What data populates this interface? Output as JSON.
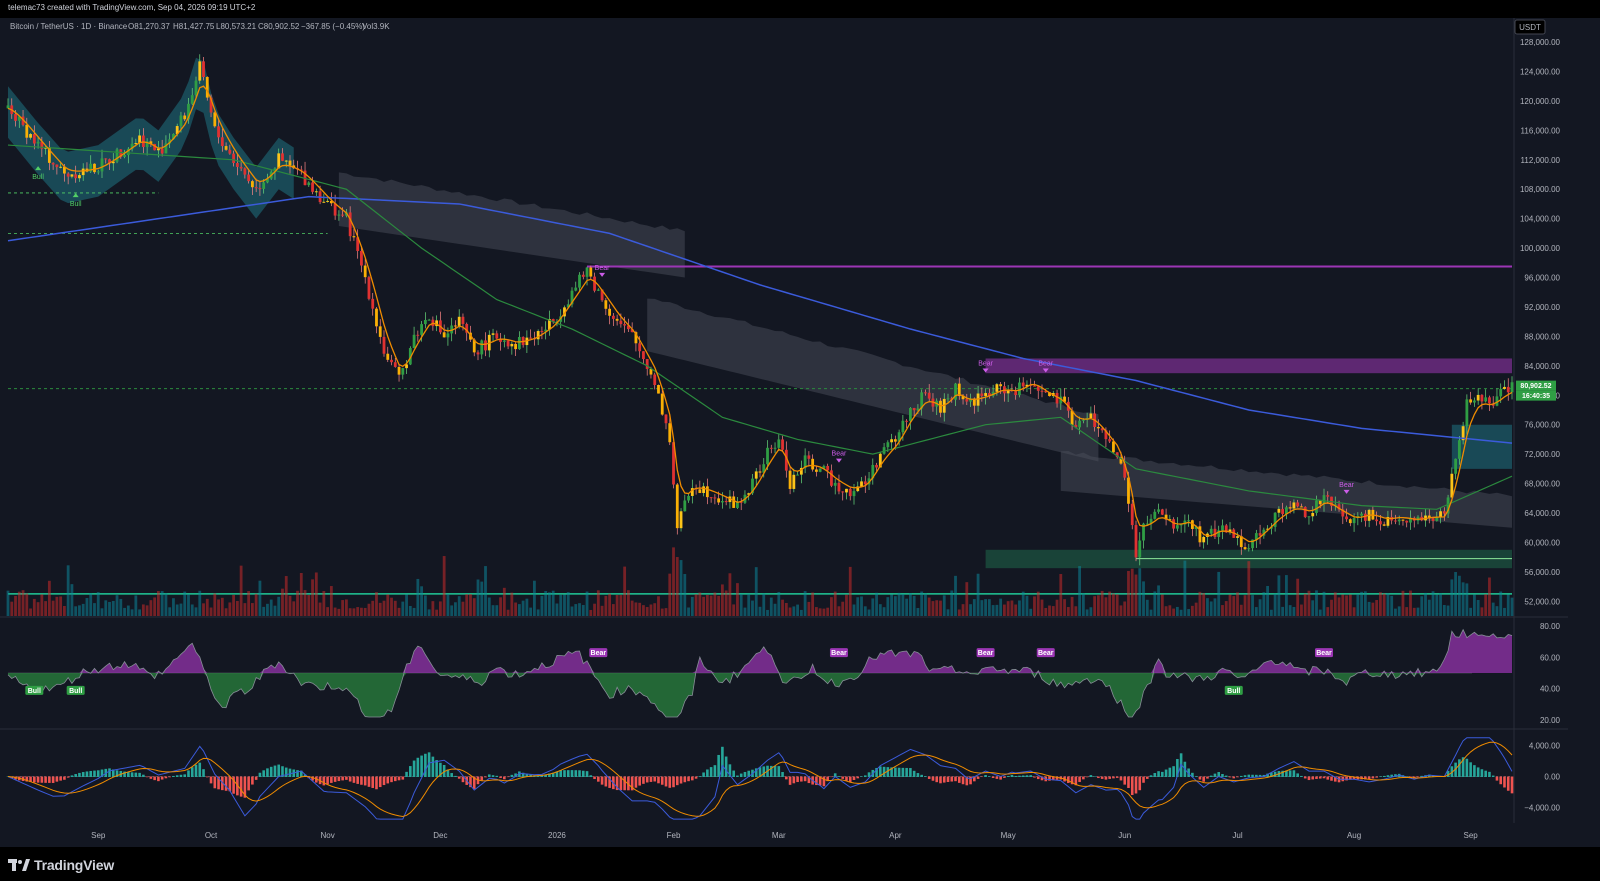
{
  "topbar": {
    "text": "telemac73 created with TradingView.com, Sep 04, 2026 09:19 UTC+2"
  },
  "brand": {
    "name": "TradingView"
  },
  "colors": {
    "bg": "#131722",
    "up": "#2f9e44",
    "down": "#e03131",
    "wick": "#ffffff",
    "ma200": "#3b5bdb",
    "ma50": "#2b8a3e",
    "ema": "#f08c00",
    "purple": "#9c36b5",
    "cloud": "#4a4e5a",
    "teal": "#1e6b7a",
    "zone": "#1f6f4d"
  },
  "chart_data": {
    "type": "candlestick",
    "symbol": "Bitcoin / TetherUS · 1D · Binance",
    "ohlc": {
      "o": "O81,270.37",
      "h": "H81,427.75",
      "l": "L80,573.21",
      "c": "C80,902.52",
      "chg": "−367.85 (−0.45%)",
      "vol": "Vol3.9K"
    },
    "currency_button": "USDT",
    "last_price": "80,902.52",
    "countdown": "16:40:35",
    "ylim": [
      50000,
      131000
    ],
    "y_ticks": [
      52000,
      56000,
      60000,
      64000,
      68000,
      72000,
      76000,
      80000,
      84000,
      88000,
      92000,
      96000,
      100000,
      104000,
      108000,
      112000,
      116000,
      120000,
      124000,
      128000
    ],
    "y_tick_labels": [
      "52,000.00",
      "56,000.00",
      "60,000.00",
      "64,000.00",
      "68,000.00",
      "72,000.00",
      "76,000.00",
      "80,000.00",
      "84,000.00",
      "88,000.00",
      "92,000.00",
      "96,000.00",
      "100,000.00",
      "104,000.00",
      "108,000.00",
      "112,000.00",
      "116,000.00",
      "120,000.00",
      "124,000.00",
      "128,000.00"
    ],
    "x_labels": [
      {
        "t": "Sep",
        "d": 24
      },
      {
        "t": "Oct",
        "d": 54
      },
      {
        "t": "Nov",
        "d": 85
      },
      {
        "t": "Dec",
        "d": 115
      },
      {
        "t": "2026",
        "d": 146
      },
      {
        "t": "Feb",
        "d": 177
      },
      {
        "t": "Mar",
        "d": 205
      },
      {
        "t": "Apr",
        "d": 236
      },
      {
        "t": "May",
        "d": 266
      },
      {
        "t": "Jun",
        "d": 297
      },
      {
        "t": "Jul",
        "d": 327
      },
      {
        "t": "Aug",
        "d": 358
      },
      {
        "t": "Sep",
        "d": 389
      }
    ],
    "close_anchors": [
      [
        0,
        119000
      ],
      [
        8,
        114000
      ],
      [
        15,
        110000
      ],
      [
        24,
        111000
      ],
      [
        35,
        115000
      ],
      [
        40,
        113000
      ],
      [
        47,
        118000
      ],
      [
        51,
        124500
      ],
      [
        55,
        116000
      ],
      [
        60,
        112000
      ],
      [
        66,
        108000
      ],
      [
        72,
        112000
      ],
      [
        78,
        110000
      ],
      [
        85,
        106000
      ],
      [
        90,
        104000
      ],
      [
        95,
        96000
      ],
      [
        100,
        86000
      ],
      [
        104,
        82000
      ],
      [
        108,
        88000
      ],
      [
        112,
        91000
      ],
      [
        116,
        88000
      ],
      [
        120,
        90000
      ],
      [
        124,
        86000
      ],
      [
        130,
        88000
      ],
      [
        135,
        87000
      ],
      [
        140,
        88000
      ],
      [
        145,
        90000
      ],
      [
        150,
        94000
      ],
      [
        154,
        97000
      ],
      [
        158,
        93000
      ],
      [
        162,
        90000
      ],
      [
        166,
        88000
      ],
      [
        172,
        82000
      ],
      [
        176,
        74000
      ],
      [
        178,
        62000
      ],
      [
        182,
        68000
      ],
      [
        186,
        67000
      ],
      [
        190,
        66000
      ],
      [
        194,
        65000
      ],
      [
        198,
        68000
      ],
      [
        202,
        72000
      ],
      [
        205,
        74000
      ],
      [
        208,
        68000
      ],
      [
        212,
        71000
      ],
      [
        216,
        70000
      ],
      [
        220,
        68000
      ],
      [
        224,
        67000
      ],
      [
        228,
        68000
      ],
      [
        232,
        72000
      ],
      [
        236,
        74000
      ],
      [
        240,
        78000
      ],
      [
        244,
        80000
      ],
      [
        248,
        78000
      ],
      [
        252,
        81000
      ],
      [
        255,
        79000
      ],
      [
        260,
        80000
      ],
      [
        264,
        81000
      ],
      [
        268,
        80500
      ],
      [
        272,
        82000
      ],
      [
        276,
        80000
      ],
      [
        280,
        79000
      ],
      [
        284,
        76000
      ],
      [
        288,
        77000
      ],
      [
        292,
        74000
      ],
      [
        295,
        72000
      ],
      [
        298,
        66000
      ],
      [
        300,
        58000
      ],
      [
        302,
        62000
      ],
      [
        306,
        64000
      ],
      [
        310,
        62000
      ],
      [
        314,
        63000
      ],
      [
        318,
        60000
      ],
      [
        322,
        62000
      ],
      [
        326,
        61000
      ],
      [
        330,
        59500
      ],
      [
        334,
        62000
      ],
      [
        338,
        64000
      ],
      [
        342,
        65000
      ],
      [
        346,
        64000
      ],
      [
        350,
        66000
      ],
      [
        354,
        64000
      ],
      [
        358,
        63000
      ],
      [
        362,
        64000
      ],
      [
        366,
        63000
      ],
      [
        370,
        63500
      ],
      [
        374,
        63000
      ],
      [
        378,
        63500
      ],
      [
        382,
        63500
      ],
      [
        385,
        71000
      ],
      [
        388,
        79000
      ],
      [
        391,
        80000
      ],
      [
        394,
        78500
      ],
      [
        398,
        80500
      ],
      [
        400,
        80902
      ]
    ],
    "ma200": [
      [
        0,
        101000
      ],
      [
        40,
        104000
      ],
      [
        80,
        107000
      ],
      [
        120,
        106000
      ],
      [
        160,
        102000
      ],
      [
        200,
        95000
      ],
      [
        240,
        89000
      ],
      [
        270,
        85000
      ],
      [
        300,
        82000
      ],
      [
        330,
        78000
      ],
      [
        360,
        75500
      ],
      [
        400,
        73500
      ]
    ],
    "ma50": [
      [
        0,
        114000
      ],
      [
        30,
        113000
      ],
      [
        60,
        112000
      ],
      [
        90,
        108000
      ],
      [
        110,
        100000
      ],
      [
        130,
        93000
      ],
      [
        150,
        89000
      ],
      [
        170,
        84000
      ],
      [
        190,
        77000
      ],
      [
        210,
        74000
      ],
      [
        230,
        72000
      ],
      [
        260,
        76000
      ],
      [
        280,
        77000
      ],
      [
        300,
        70000
      ],
      [
        330,
        67000
      ],
      [
        360,
        65000
      ],
      [
        380,
        64500
      ],
      [
        400,
        69000
      ]
    ],
    "resistance_zone": [
      83000,
      85000
    ],
    "resistance_line": 97500,
    "support_zone": [
      56500,
      59000
    ],
    "dashed_level": 80900,
    "pivot_levels": [
      {
        "v": 107500,
        "d1": 0,
        "d2": 40
      },
      {
        "v": 102000,
        "d1": 0,
        "d2": 85
      }
    ],
    "signals": [
      {
        "t": "Bull",
        "d": 8
      },
      {
        "t": "Bull",
        "d": 18
      },
      {
        "t": "Bear",
        "d": 158
      },
      {
        "t": "Bear",
        "d": 221
      },
      {
        "t": "Bear",
        "d": 260
      },
      {
        "t": "Bear",
        "d": 276
      },
      {
        "t": "Bear",
        "d": 356
      }
    ],
    "rsi": {
      "ylim": [
        15,
        85
      ],
      "ticks": [
        "80.00",
        "60.00",
        "40.00",
        "20.00"
      ],
      "tick_vals": [
        80,
        60,
        40,
        20
      ],
      "mid": 50,
      "labels": [
        {
          "t": "Bull",
          "d": 7
        },
        {
          "t": "Bull",
          "d": 18
        },
        {
          "t": "Bear",
          "d": 157
        },
        {
          "t": "Bear",
          "d": 221
        },
        {
          "t": "Bear",
          "d": 260
        },
        {
          "t": "Bear",
          "d": 276
        },
        {
          "t": "Bear",
          "d": 350
        },
        {
          "t": "Bull",
          "d": 326
        }
      ]
    },
    "macd": {
      "ylim": [
        -6000,
        6000
      ],
      "ticks": [
        "4,000.00",
        "0.00",
        "−4,000.00"
      ],
      "tick_vals": [
        4000,
        0,
        -4000
      ]
    }
  }
}
